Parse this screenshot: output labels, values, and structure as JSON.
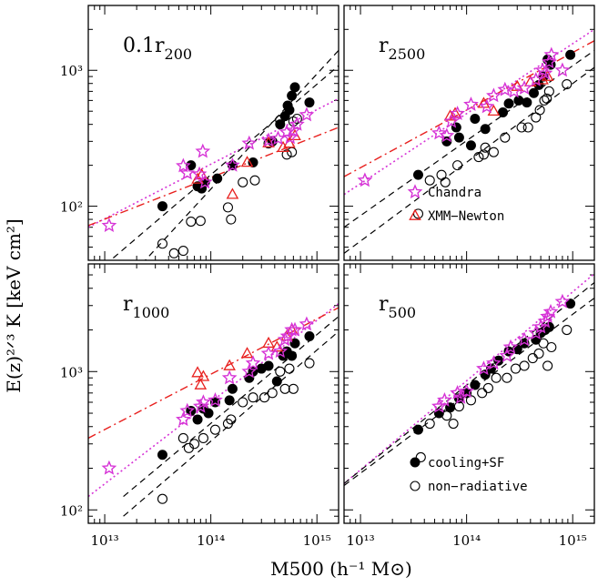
{
  "chart_data": {
    "type": "scatter",
    "xlabel": "M500 (h⁻¹ M⊙)",
    "ylabel": "E(z)²ᐟ³ K [keV cm²]",
    "xscale": "log",
    "yscale": "log",
    "xlim": [
      7000000000000.0,
      1600000000000000.0
    ],
    "xticks": [
      {
        "value": 10000000000000.0,
        "label": "10¹³"
      },
      {
        "value": 100000000000000.0,
        "label": "10¹⁴"
      },
      {
        "value": 1000000000000000.0,
        "label": "10¹⁵"
      }
    ],
    "legend_sets": [
      {
        "panel": "r2500",
        "entries": [
          {
            "name": "Chandra",
            "marker": "star",
            "color": "#d633d6"
          },
          {
            "name": "XMM−Newton",
            "marker": "triangle",
            "color": "#e8201e"
          }
        ]
      },
      {
        "panel": "r500",
        "entries": [
          {
            "name": "cooling+SF",
            "marker": "filled-circle",
            "color": "#000000"
          },
          {
            "name": "non−radiative",
            "marker": "open-circle",
            "color": "#000000"
          }
        ]
      }
    ],
    "panels": [
      {
        "id": "p01r200",
        "label": "0.1r",
        "label_sub": "200",
        "ylim": [
          40,
          3000
        ],
        "yticks": [
          {
            "value": 100,
            "label": "10²"
          },
          {
            "value": 1000,
            "label": "10³"
          }
        ],
        "series": [
          {
            "kind": "chandra",
            "x": [
              11000000000000.0,
              55000000000000.0,
              60000000000000.0,
              78000000000000.0,
              84000000000000.0,
              88000000000000.0,
              160000000000000.0,
              230000000000000.0,
              350000000000000.0,
              430000000000000.0,
              520000000000000.0,
              560000000000000.0,
              600000000000000.0,
              650000000000000.0,
              800000000000000.0
            ],
            "y": [
              72,
              198,
              175,
              172,
              253,
              150,
              200,
              290,
              305,
              315,
              350,
              320,
              360,
              400,
              470
            ]
          },
          {
            "kind": "xmm",
            "x": [
              75000000000000.0,
              82000000000000.0,
              160000000000000.0,
              220000000000000.0,
              350000000000000.0,
              480000000000000.0,
              550000000000000.0,
              620000000000000.0
            ],
            "y": [
              158,
              170,
              122,
              210,
              292,
              270,
              290,
              330
            ]
          },
          {
            "kind": "cooling",
            "x": [
              35000000000000.0,
              65000000000000.0,
              75000000000000.0,
              82000000000000.0,
              88000000000000.0,
              115000000000000.0,
              160000000000000.0,
              250000000000000.0,
              380000000000000.0,
              450000000000000.0,
              500000000000000.0,
              530000000000000.0,
              550000000000000.0,
              580000000000000.0,
              620000000000000.0,
              850000000000000.0
            ],
            "y": [
              100,
              200,
              140,
              135,
              150,
              160,
              200,
              210,
              300,
              400,
              460,
              550,
              510,
              650,
              750,
              580
            ]
          },
          {
            "kind": "nonrad",
            "x": [
              35000000000000.0,
              45000000000000.0,
              55000000000000.0,
              65000000000000.0,
              80000000000000.0,
              145000000000000.0,
              155000000000000.0,
              200000000000000.0,
              260000000000000.0,
              350000000000000.0,
              450000000000000.0,
              520000000000000.0,
              580000000000000.0,
              600000000000000.0,
              650000000000000.0
            ],
            "y": [
              53,
              45,
              47,
              77,
              78,
              98,
              80,
              150,
              155,
              290,
              430,
              240,
              250,
              420,
              440
            ]
          }
        ],
        "fits": [
          {
            "kind": "chandra",
            "x": [
              7000000000000.0,
              1600000000000000.0
            ],
            "y": [
              70,
              620
            ]
          },
          {
            "kind": "xmm",
            "x": [
              7000000000000.0,
              1600000000000000.0
            ],
            "y": [
              72,
              380
            ]
          },
          {
            "kind": "cooling",
            "x": [
              7000000000000.0,
              1600000000000000.0
            ],
            "y": [
              29,
              1080
            ]
          },
          {
            "kind": "nonrad",
            "x": [
              10000000000000.0,
              1600000000000000.0
            ],
            "y": [
              19,
              1400
            ]
          }
        ]
      },
      {
        "id": "r2500",
        "label": "r",
        "label_sub": "2500",
        "ylim": [
          40,
          3000
        ],
        "yticks": [
          {
            "value": 100,
            "label": ""
          },
          {
            "value": 1000,
            "label": ""
          }
        ],
        "series": [
          {
            "kind": "chandra",
            "x": [
              11000000000000.0,
              55000000000000.0,
              65000000000000.0,
              72000000000000.0,
              82000000000000.0,
              110000000000000.0,
              155000000000000.0,
              180000000000000.0,
              230000000000000.0,
              280000000000000.0,
              350000000000000.0,
              450000000000000.0,
              520000000000000.0,
              550000000000000.0,
              600000000000000.0,
              630000000000000.0,
              800000000000000.0
            ],
            "y": [
              155,
              345,
              330,
              420,
              480,
              560,
              540,
              650,
              720,
              700,
              740,
              850,
              1000,
              950,
              1150,
              1300,
              1000
            ]
          },
          {
            "kind": "xmm",
            "x": [
              70000000000000.0,
              78000000000000.0,
              145000000000000.0,
              180000000000000.0,
              300000000000000.0,
              400000000000000.0,
              520000000000000.0,
              580000000000000.0
            ],
            "y": [
              460,
              480,
              570,
              500,
              760,
              820,
              850,
              900
            ]
          },
          {
            "kind": "cooling",
            "x": [
              35000000000000.0,
              65000000000000.0,
              80000000000000.0,
              85000000000000.0,
              110000000000000.0,
              120000000000000.0,
              150000000000000.0,
              220000000000000.0,
              250000000000000.0,
              310000000000000.0,
              370000000000000.0,
              430000000000000.0,
              480000000000000.0,
              530000000000000.0,
              580000000000000.0,
              620000000000000.0,
              950000000000000.0
            ],
            "y": [
              170,
              300,
              380,
              320,
              280,
              440,
              370,
              490,
              570,
              600,
              580,
              680,
              780,
              900,
              1200,
              1100,
              1300
            ]
          },
          {
            "kind": "nonrad",
            "x": [
              35000000000000.0,
              45000000000000.0,
              58000000000000.0,
              63000000000000.0,
              82000000000000.0,
              130000000000000.0,
              145000000000000.0,
              150000000000000.0,
              180000000000000.0,
              230000000000000.0,
              330000000000000.0,
              380000000000000.0,
              450000000000000.0,
              490000000000000.0,
              540000000000000.0,
              570000000000000.0,
              600000000000000.0,
              880000000000000.0
            ],
            "y": [
              88,
              155,
              170,
              150,
              200,
              230,
              240,
              270,
              250,
              320,
              380,
              380,
              450,
              510,
              600,
              620,
              700,
              790
            ]
          }
        ],
        "fits": [
          {
            "kind": "chandra",
            "x": [
              7000000000000.0,
              1600000000000000.0
            ],
            "y": [
              122,
              2000
            ]
          },
          {
            "kind": "xmm",
            "x": [
              7000000000000.0,
              1600000000000000.0
            ],
            "y": [
              165,
              1650
            ]
          },
          {
            "kind": "cooling",
            "x": [
              7000000000000.0,
              1600000000000000.0
            ],
            "y": [
              70,
              1400
            ]
          },
          {
            "kind": "nonrad",
            "x": [
              7000000000000.0,
              1600000000000000.0
            ],
            "y": [
              45,
              1050
            ]
          }
        ]
      },
      {
        "id": "r1000",
        "label": "r",
        "label_sub": "1000",
        "ylim": [
          80,
          6000
        ],
        "yticks": [
          {
            "value": 100,
            "label": "10²"
          },
          {
            "value": 1000,
            "label": "10³"
          }
        ],
        "series": [
          {
            "kind": "chandra",
            "x": [
              11000000000000.0,
              55000000000000.0,
              60000000000000.0,
              80000000000000.0,
              85000000000000.0,
              110000000000000.0,
              150000000000000.0,
              230000000000000.0,
              250000000000000.0,
              350000000000000.0,
              450000000000000.0,
              500000000000000.0,
              530000000000000.0,
              580000000000000.0,
              620000000000000.0,
              800000000000000.0
            ],
            "y": [
              200,
              450,
              520,
              560,
              600,
              620,
              900,
              1000,
              1150,
              1350,
              1400,
              1700,
              1800,
              2000,
              2000,
              2200
            ]
          },
          {
            "kind": "xmm",
            "x": [
              75000000000000.0,
              80000000000000.0,
              85000000000000.0,
              150000000000000.0,
              220000000000000.0,
              350000000000000.0,
              420000000000000.0,
              520000000000000.0,
              580000000000000.0
            ],
            "y": [
              980,
              800,
              920,
              1100,
              1350,
              1600,
              1500,
              1800,
              2000
            ]
          },
          {
            "kind": "cooling",
            "x": [
              35000000000000.0,
              65000000000000.0,
              75000000000000.0,
              85000000000000.0,
              95000000000000.0,
              110000000000000.0,
              150000000000000.0,
              160000000000000.0,
              230000000000000.0,
              250000000000000.0,
              300000000000000.0,
              350000000000000.0,
              420000000000000.0,
              480000000000000.0,
              520000000000000.0,
              580000000000000.0,
              620000000000000.0,
              850000000000000.0
            ],
            "y": [
              250,
              520,
              450,
              540,
              500,
              600,
              620,
              750,
              900,
              1000,
              1050,
              1100,
              850,
              1300,
              1400,
              1300,
              1600,
              1800
            ]
          },
          {
            "kind": "nonrad",
            "x": [
              35000000000000.0,
              55000000000000.0,
              62000000000000.0,
              70000000000000.0,
              85000000000000.0,
              110000000000000.0,
              145000000000000.0,
              155000000000000.0,
              200000000000000.0,
              250000000000000.0,
              320000000000000.0,
              380000000000000.0,
              450000000000000.0,
              500000000000000.0,
              550000000000000.0,
              600000000000000.0,
              850000000000000.0
            ],
            "y": [
              120,
              330,
              280,
              300,
              330,
              380,
              420,
              450,
              600,
              650,
              650,
              700,
              1000,
              750,
              1050,
              750,
              1150
            ]
          }
        ],
        "fits": [
          {
            "kind": "chandra",
            "x": [
              7000000000000.0,
              1600000000000000.0
            ],
            "y": [
              125,
              3100
            ]
          },
          {
            "kind": "xmm",
            "x": [
              7000000000000.0,
              1600000000000000.0
            ],
            "y": [
              330,
              2900
            ]
          },
          {
            "kind": "cooling",
            "x": [
              15000000000000.0,
              1600000000000000.0
            ],
            "y": [
              125,
              2500
            ]
          },
          {
            "kind": "nonrad",
            "x": [
              15000000000000.0,
              1600000000000000.0
            ],
            "y": [
              90,
              1950
            ]
          }
        ]
      },
      {
        "id": "r500",
        "label": "r",
        "label_sub": "500",
        "ylim": [
          80,
          6000
        ],
        "yticks": [
          {
            "value": 100,
            "label": ""
          },
          {
            "value": 1000,
            "label": ""
          }
        ],
        "series": [
          {
            "kind": "chandra",
            "x": [
              55000000000000.0,
              62000000000000.0,
              82000000000000.0,
              88000000000000.0,
              100000000000000.0,
              145000000000000.0,
              180000000000000.0,
              240000000000000.0,
              260000000000000.0,
              350000000000000.0,
              450000000000000.0,
              500000000000000.0,
              550000000000000.0,
              580000000000000.0,
              620000000000000.0,
              800000000000000.0
            ],
            "y": [
              560,
              620,
              700,
              650,
              720,
              1050,
              1150,
              1300,
              1500,
              1700,
              1900,
              2100,
              2300,
              2500,
              2700,
              3200
            ]
          },
          {
            "kind": "cooling",
            "x": [
              35000000000000.0,
              55000000000000.0,
              70000000000000.0,
              85000000000000.0,
              100000000000000.0,
              120000000000000.0,
              150000000000000.0,
              170000000000000.0,
              200000000000000.0,
              250000000000000.0,
              300000000000000.0,
              350000000000000.0,
              450000000000000.0,
              500000000000000.0,
              550000000000000.0,
              600000000000000.0,
              950000000000000.0
            ],
            "y": [
              380,
              500,
              550,
              640,
              700,
              800,
              950,
              1050,
              1200,
              1400,
              1450,
              1600,
              1700,
              1900,
              2000,
              2100,
              3100
            ]
          },
          {
            "kind": "nonrad",
            "x": [
              37000000000000.0,
              45000000000000.0,
              65000000000000.0,
              75000000000000.0,
              85000000000000.0,
              110000000000000.0,
              140000000000000.0,
              160000000000000.0,
              190000000000000.0,
              240000000000000.0,
              290000000000000.0,
              350000000000000.0,
              420000000000000.0,
              480000000000000.0,
              530000000000000.0,
              580000000000000.0,
              630000000000000.0,
              880000000000000.0
            ],
            "y": [
              240,
              420,
              480,
              420,
              560,
              620,
              700,
              760,
              900,
              900,
              1050,
              1100,
              1250,
              1350,
              1600,
              1100,
              1500,
              2000
            ]
          }
        ],
        "fits": [
          {
            "kind": "chandra",
            "x": [
              7000000000000.0,
              1600000000000000.0
            ],
            "y": [
              155,
              5100
            ]
          },
          {
            "kind": "cooling",
            "x": [
              7000000000000.0,
              1600000000000000.0
            ],
            "y": [
              155,
              4400
            ]
          },
          {
            "kind": "nonrad",
            "x": [
              7000000000000.0,
              1600000000000000.0
            ],
            "y": [
              150,
              3400
            ]
          }
        ]
      }
    ]
  }
}
